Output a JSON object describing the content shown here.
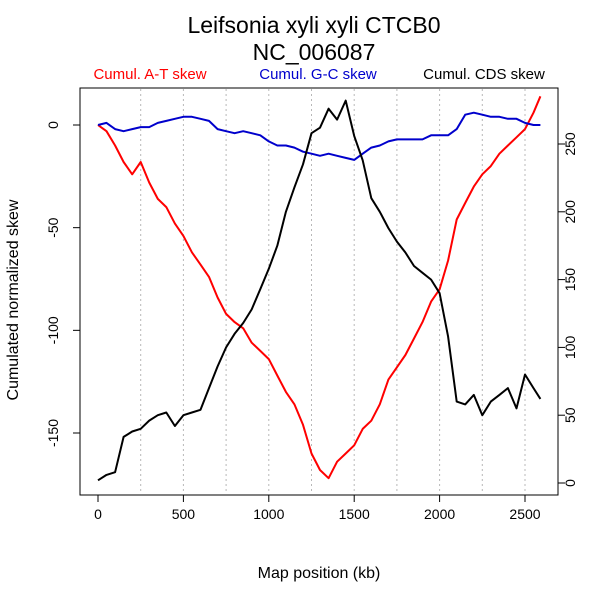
{
  "chart_data": {
    "type": "line",
    "title_line1": "Leifsonia xyli xyli CTCB0",
    "title_line2": "NC_006087",
    "xlabel": "Map position (kb)",
    "ylabel": "Cumulated normalized skew",
    "xlim": [
      0,
      2590
    ],
    "ylim_left": [
      -174,
      14
    ],
    "ylim_right": [
      0,
      285
    ],
    "x_ticks": [
      0,
      500,
      1000,
      1500,
      2000,
      2500
    ],
    "y_ticks_left": [
      0,
      -50,
      -100,
      -150
    ],
    "y_ticks_right": [
      0,
      50,
      100,
      150,
      200,
      250
    ],
    "grid": "vertical dotted lines every 250 kb",
    "grid_x": [
      250,
      500,
      750,
      1000,
      1250,
      1500,
      1750,
      2000,
      2250,
      2500
    ],
    "colors": {
      "at": "#ff0000",
      "gc": "#0000cc",
      "cds": "#000000"
    },
    "series": [
      {
        "name": "Cumul. A-T skew",
        "color": "#ff0000",
        "axis": "left",
        "x": [
          0,
          50,
          100,
          150,
          200,
          250,
          300,
          350,
          400,
          450,
          500,
          550,
          600,
          650,
          700,
          750,
          800,
          850,
          900,
          950,
          1000,
          1050,
          1100,
          1150,
          1200,
          1250,
          1300,
          1350,
          1400,
          1450,
          1500,
          1550,
          1600,
          1650,
          1700,
          1750,
          1800,
          1850,
          1900,
          1950,
          2000,
          2050,
          2100,
          2150,
          2200,
          2250,
          2300,
          2350,
          2400,
          2450,
          2500,
          2550,
          2590
        ],
        "values": [
          0,
          -3,
          -10,
          -18,
          -24,
          -18,
          -28,
          -36,
          -40,
          -48,
          -54,
          -62,
          -68,
          -74,
          -84,
          -92,
          -96,
          -99,
          -106,
          -110,
          -114,
          -122,
          -130,
          -136,
          -146,
          -160,
          -168,
          -172,
          -164,
          -160,
          -156,
          -148,
          -144,
          -136,
          -124,
          -118,
          -112,
          -104,
          -96,
          -86,
          -80,
          -66,
          -46,
          -38,
          -30,
          -24,
          -20,
          -14,
          -10,
          -6,
          -2,
          6,
          14
        ]
      },
      {
        "name": "Cumul. G-C skew",
        "color": "#0000cc",
        "axis": "left",
        "x": [
          0,
          50,
          100,
          150,
          200,
          250,
          300,
          350,
          400,
          450,
          500,
          550,
          600,
          650,
          700,
          750,
          800,
          850,
          900,
          950,
          1000,
          1050,
          1100,
          1150,
          1200,
          1250,
          1300,
          1350,
          1400,
          1450,
          1500,
          1550,
          1600,
          1650,
          1700,
          1750,
          1800,
          1850,
          1900,
          1950,
          2000,
          2050,
          2100,
          2150,
          2200,
          2250,
          2300,
          2350,
          2400,
          2450,
          2500,
          2550,
          2590
        ],
        "values": [
          0,
          1,
          -2,
          -3,
          -2,
          -1,
          -1,
          1,
          2,
          3,
          4,
          4,
          3,
          2,
          -2,
          -3,
          -4,
          -3,
          -4,
          -5,
          -8,
          -10,
          -10,
          -11,
          -13,
          -14,
          -15,
          -14,
          -15,
          -16,
          -17,
          -14,
          -11,
          -10,
          -8,
          -7,
          -7,
          -7,
          -7,
          -5,
          -5,
          -5,
          -2,
          5,
          6,
          5,
          4,
          4,
          3,
          3,
          1,
          0,
          0
        ]
      },
      {
        "name": "Cumul. CDS skew",
        "color": "#000000",
        "axis": "right",
        "x": [
          0,
          50,
          100,
          150,
          200,
          250,
          300,
          350,
          400,
          450,
          500,
          550,
          600,
          650,
          700,
          750,
          800,
          850,
          900,
          950,
          1000,
          1050,
          1100,
          1150,
          1200,
          1250,
          1300,
          1350,
          1400,
          1450,
          1500,
          1550,
          1600,
          1650,
          1700,
          1750,
          1800,
          1850,
          1900,
          1950,
          2000,
          2050,
          2100,
          2150,
          2200,
          2250,
          2300,
          2350,
          2400,
          2450,
          2500,
          2550,
          2590
        ],
        "values": [
          2,
          6,
          8,
          34,
          38,
          40,
          46,
          50,
          52,
          42,
          50,
          52,
          54,
          70,
          86,
          100,
          110,
          118,
          128,
          143,
          158,
          175,
          200,
          218,
          235,
          258,
          262,
          276,
          268,
          282,
          256,
          238,
          210,
          200,
          188,
          178,
          170,
          160,
          155,
          150,
          140,
          108,
          60,
          58,
          65,
          50,
          60,
          65,
          70,
          55,
          80,
          70,
          62
        ]
      }
    ]
  }
}
